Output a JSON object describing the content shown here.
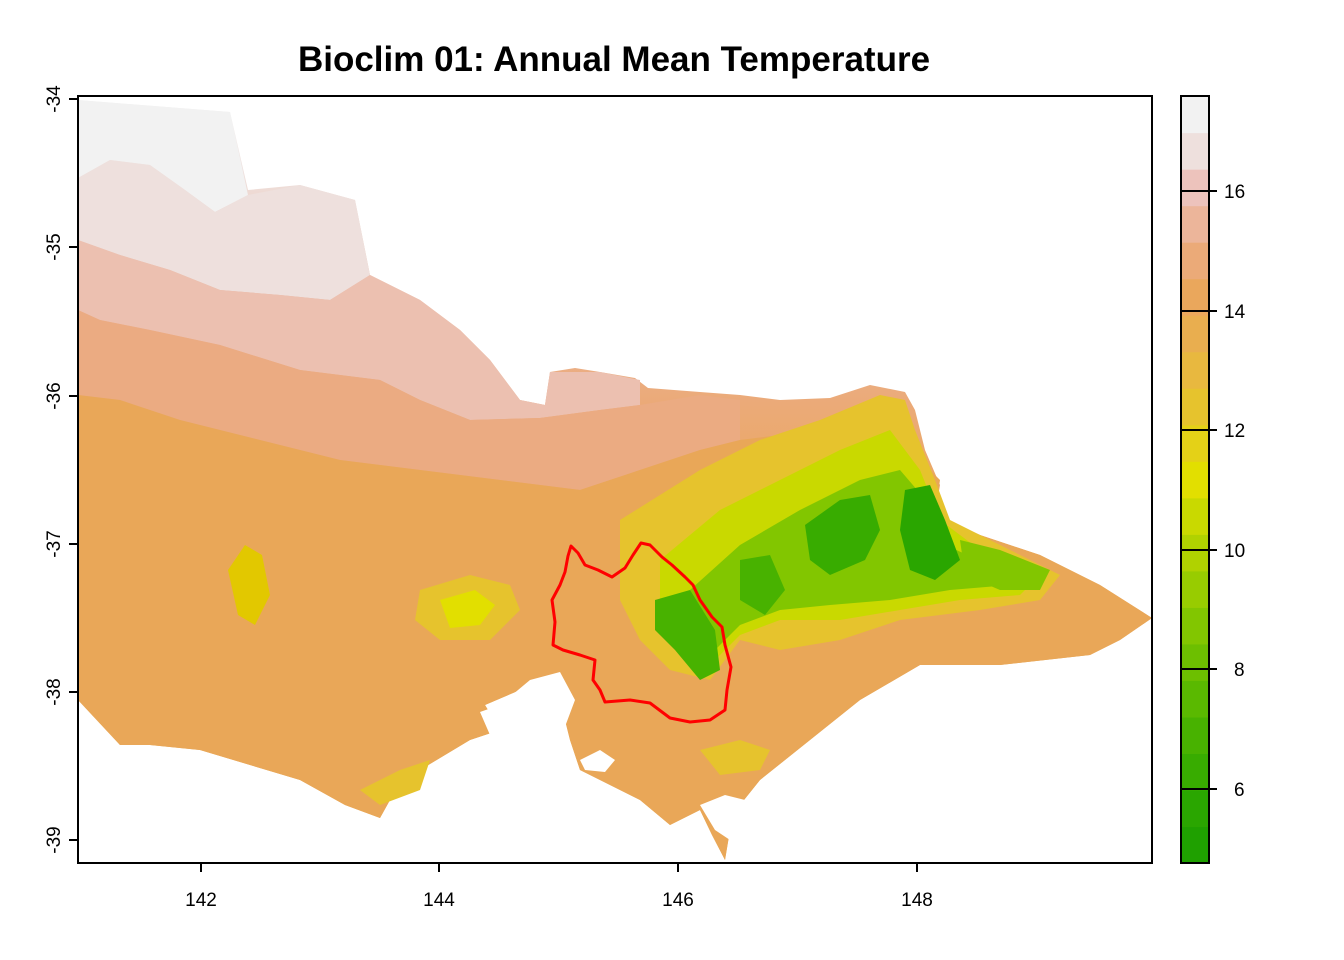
{
  "title": "Bioclim 01: Annual Mean Temperature",
  "map": {
    "x_range": [
      141.0,
      150.0
    ],
    "y_range": [
      -39.15,
      -33.98
    ],
    "x_ticks": [
      "142",
      "144",
      "146",
      "148"
    ],
    "y_ticks": [
      "-34",
      "-35",
      "-36",
      "-37",
      "-38",
      "-39"
    ],
    "boundary_color": "#ff0000",
    "palette_note": "terrain colours"
  },
  "legend": {
    "range": [
      4.7,
      17.6
    ],
    "ticks": [
      "6",
      "8",
      "10",
      "12",
      "14",
      "16"
    ],
    "colors": [
      "#1fa000",
      "#2aa600",
      "#38ac00",
      "#48b200",
      "#5ab900",
      "#6dbf00",
      "#82c600",
      "#98cc00",
      "#b0d200",
      "#c9d900",
      "#e2df00",
      "#e4d117",
      "#e6c32d",
      "#e8b83f",
      "#e9ae4f",
      "#eaa75c",
      "#ebaa78",
      "#ecb59a",
      "#edc3bc",
      "#eee0dd",
      "#f2f2f2"
    ]
  }
}
